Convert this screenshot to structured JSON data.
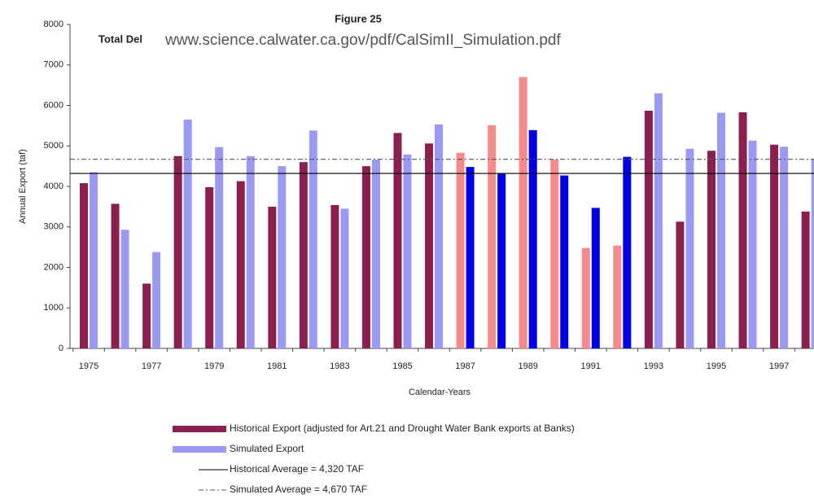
{
  "chart_data": {
    "type": "bar",
    "title": "Figure 25",
    "subtitle": "Total Del",
    "watermark": "www.science.calwater.ca.gov/pdf/CalSimII_Simulation.pdf",
    "ylabel": "Annual Export  (taf)",
    "xlabel": "Calendar-Years",
    "categories": [
      "1975",
      null,
      "1977",
      null,
      "1979",
      null,
      "1981",
      null,
      "1983",
      null,
      "1985",
      null,
      "1987",
      null,
      "1989",
      null,
      "1991",
      null,
      "1993",
      null,
      "1995",
      null,
      "1997",
      null
    ],
    "series": [
      {
        "name": "Historical Export (adjusted for Art.21 and Drought Water Bank exports at Banks)",
        "color": "#8b1f4f",
        "values": [
          4080,
          3570,
          1600,
          4750,
          3980,
          4130,
          3500,
          4600,
          3540,
          4500,
          5320,
          5060,
          4830,
          5510,
          6700,
          4660,
          2480,
          2540,
          5870,
          3130,
          4880,
          5830,
          5030,
          3380
        ],
        "colors": [
          "#8b1f4f",
          "#8b1f4f",
          "#8b1f4f",
          "#8b1f4f",
          "#8b1f4f",
          "#8b1f4f",
          "#8b1f4f",
          "#8b1f4f",
          "#8b1f4f",
          "#8b1f4f",
          "#8b1f4f",
          "#8b1f4f",
          "#f58a8a",
          "#f58a8a",
          "#f58a8a",
          "#f58a8a",
          "#f58a8a",
          "#f58a8a",
          "#8b1f4f",
          "#8b1f4f",
          "#8b1f4f",
          "#8b1f4f",
          "#8b1f4f",
          "#8b1f4f"
        ]
      },
      {
        "name": "Simulated Export",
        "color": "#9a9af5",
        "values": [
          4350,
          2930,
          2380,
          5650,
          4970,
          4750,
          4500,
          5380,
          3450,
          4660,
          4790,
          5530,
          4480,
          4310,
          5390,
          4270,
          3470,
          4730,
          6300,
          4930,
          5820,
          5130,
          4980,
          4670
        ],
        "colors": [
          "#9a9af5",
          "#9a9af5",
          "#9a9af5",
          "#9a9af5",
          "#9a9af5",
          "#9a9af5",
          "#9a9af5",
          "#9a9af5",
          "#9a9af5",
          "#9a9af5",
          "#9a9af5",
          "#9a9af5",
          "#0000e6",
          "#0000e6",
          "#0000e6",
          "#0000e6",
          "#0000e6",
          "#0000e6",
          "#9a9af5",
          "#9a9af5",
          "#9a9af5",
          "#9a9af5",
          "#9a9af5",
          "#9a9af5"
        ]
      }
    ],
    "hlines": [
      {
        "value": 4320,
        "label": "Historical Average = 4,320 TAF",
        "color": "#000000",
        "style": "solid"
      },
      {
        "value": 4670,
        "label": "Simulated Average = 4,670 TAF",
        "color": "#555555",
        "style": "dashdot"
      }
    ],
    "ylim": [
      0,
      8000
    ],
    "yticks": [
      0,
      1000,
      2000,
      3000,
      4000,
      5000,
      6000,
      7000,
      8000
    ]
  }
}
